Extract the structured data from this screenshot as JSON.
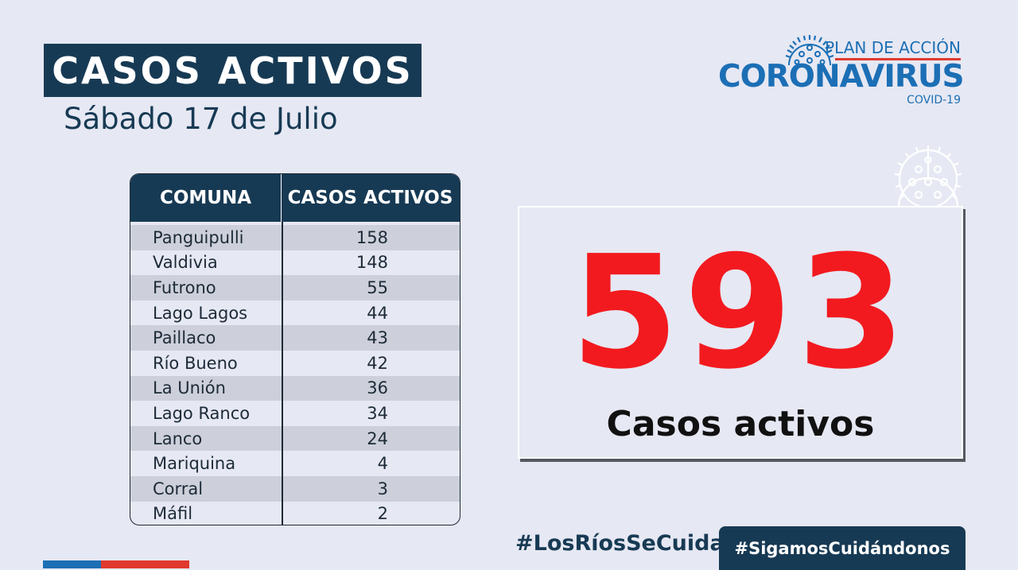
{
  "header": {
    "title": "CASOS ACTIVOS",
    "date": "Sábado 17 de Julio"
  },
  "logo": {
    "plan": "PLAN DE ACCIÓN",
    "main": "CORONAVIRUS",
    "sub": "COVID-19",
    "icon": "virus-icon",
    "color": "#1c6fb5",
    "accent": "#e03a2e"
  },
  "table": {
    "headers": [
      "COMUNA",
      "CASOS ACTIVOS"
    ],
    "rows": [
      {
        "comuna": "Panguipulli",
        "casos": "158"
      },
      {
        "comuna": "Valdivia",
        "casos": "148"
      },
      {
        "comuna": "Futrono",
        "casos": "55"
      },
      {
        "comuna": "Lago Lagos",
        "casos": "44"
      },
      {
        "comuna": "Paillaco",
        "casos": "43"
      },
      {
        "comuna": "Río Bueno",
        "casos": "42"
      },
      {
        "comuna": "La Unión",
        "casos": "36"
      },
      {
        "comuna": "Lago Ranco",
        "casos": "34"
      },
      {
        "comuna": "Lanco",
        "casos": "24"
      },
      {
        "comuna": "Mariquina",
        "casos": "4"
      },
      {
        "comuna": "Corral",
        "casos": "3"
      },
      {
        "comuna": "Máfil",
        "casos": "2"
      }
    ]
  },
  "summary": {
    "total": "593",
    "label": "Casos activos",
    "total_color": "#f21a1f"
  },
  "footer": {
    "hashtag1": "#LosRíosSeCuida",
    "hashtag2": "#SigamosCuidándonos"
  },
  "colors": {
    "navy": "#173a54",
    "background": "#e6e8f3"
  }
}
